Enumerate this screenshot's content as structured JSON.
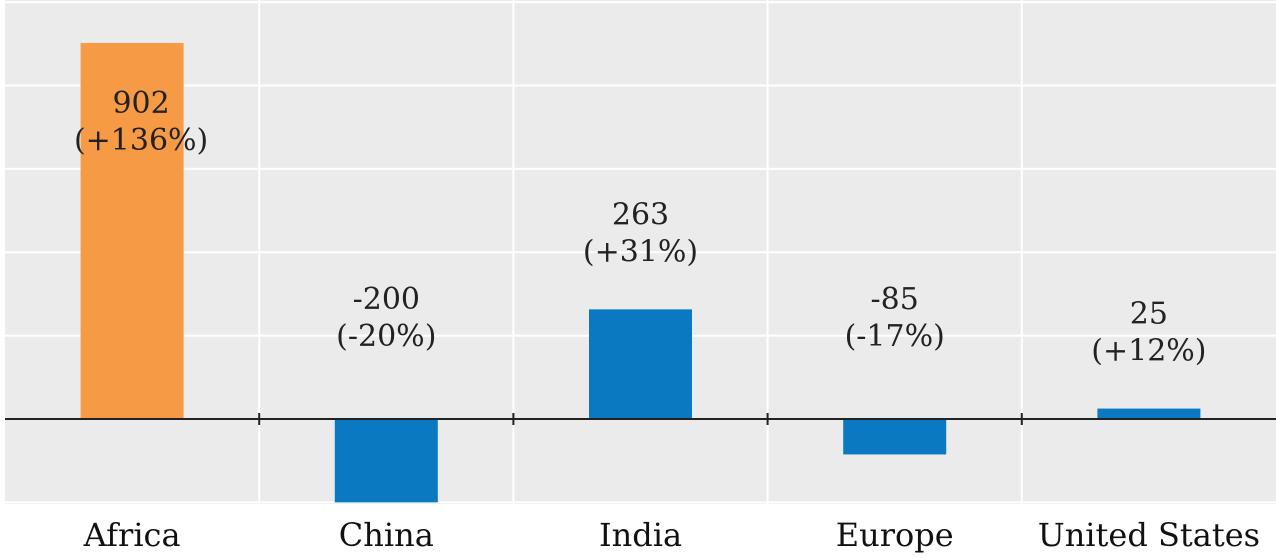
{
  "chart_data": {
    "type": "bar",
    "title": "",
    "xlabel": "",
    "ylabel": "",
    "categories": [
      "Africa",
      "China",
      "India",
      "Europe",
      "United States"
    ],
    "values": [
      902,
      -200,
      263,
      -85,
      25
    ],
    "data_labels": [
      [
        "902",
        "(+136%)"
      ],
      [
        "-200",
        "(-20%)"
      ],
      [
        "263",
        "(+31%)"
      ],
      [
        "-85",
        "(-17%)"
      ],
      [
        "25",
        "(+12%)"
      ]
    ],
    "ylim": [
      -200,
      1000
    ],
    "grid": true,
    "legend": "none",
    "colors": {
      "highlight": "#f79a46",
      "default": "#0a79c1",
      "plot_background": "#ebebeb",
      "gridline": "#ffffff",
      "baseline": "#222222"
    },
    "highlight_index": 0
  }
}
